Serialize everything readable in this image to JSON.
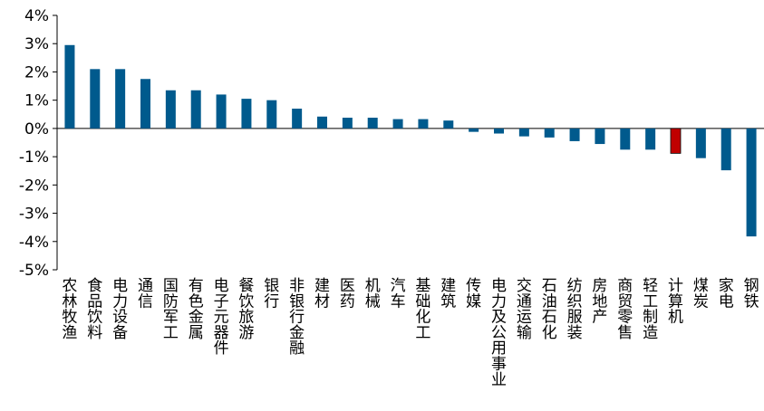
{
  "chart_data": {
    "type": "bar",
    "title": "",
    "xlabel": "",
    "ylabel": "",
    "ylim": [
      -5,
      4
    ],
    "yticks": [
      4,
      3,
      2,
      1,
      0,
      -1,
      -2,
      -3,
      -4,
      -5
    ],
    "ytick_labels": [
      "4%",
      "3%",
      "2%",
      "1%",
      "0%",
      "-1%",
      "-2%",
      "-3%",
      "-4%",
      "-5%"
    ],
    "grid": false,
    "colors": {
      "default": "#005A8D",
      "highlight": "#C00000"
    },
    "highlight_category": "计算机",
    "categories": [
      "农林牧渔",
      "食品饮料",
      "电力设备",
      "通信",
      "国防军工",
      "有色金属",
      "电子元器件",
      "餐饮旅游",
      "银行",
      "非银行金融",
      "建材",
      "医药",
      "机械",
      "汽车",
      "基础化工",
      "建筑",
      "传媒",
      "电力及公用事业",
      "交通运输",
      "石油石化",
      "纺织服装",
      "房地产",
      "商贸零售",
      "轻工制造",
      "计算机",
      "煤炭",
      "家电",
      "钢铁"
    ],
    "values": [
      2.95,
      2.1,
      2.1,
      1.75,
      1.35,
      1.35,
      1.2,
      1.05,
      1.0,
      0.7,
      0.42,
      0.38,
      0.38,
      0.33,
      0.33,
      0.28,
      -0.12,
      -0.18,
      -0.28,
      -0.32,
      -0.45,
      -0.55,
      -0.75,
      -0.75,
      -0.88,
      -1.05,
      -1.48,
      -3.82
    ]
  }
}
